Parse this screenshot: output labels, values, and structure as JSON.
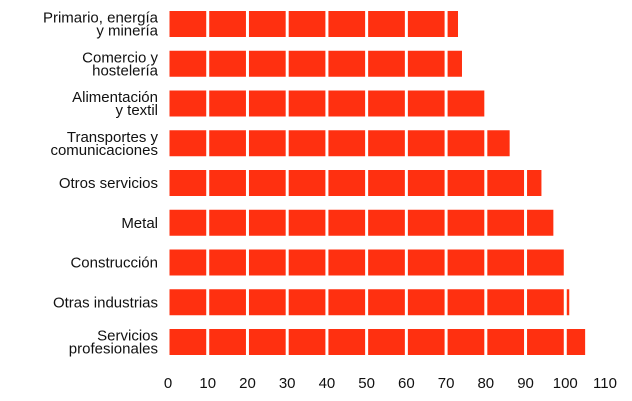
{
  "chart_data": {
    "type": "bar",
    "orientation": "horizontal",
    "categories": [
      "Primario, energía\ny minería",
      "Comercio y\nhostelería",
      "Alimentación\ny textil",
      "Transportes y\ncomunicaciones",
      "Otros servicios",
      "Metal",
      "Construcción",
      "Otras industrias",
      "Servicios\nprofesionales"
    ],
    "values": [
      73,
      74,
      80,
      86,
      94,
      97,
      100,
      101,
      105
    ],
    "color": "#ff3010",
    "xlim": [
      0,
      110
    ],
    "xticks": [
      0,
      10,
      20,
      30,
      40,
      50,
      60,
      70,
      80,
      90,
      100,
      110
    ],
    "grid": true
  }
}
